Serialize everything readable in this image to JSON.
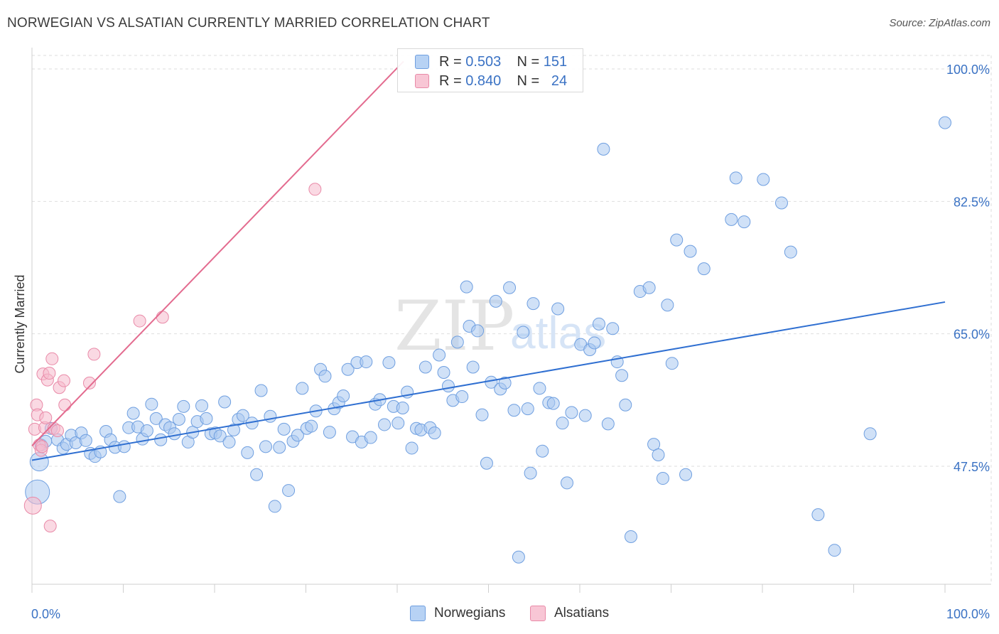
{
  "title": "NORWEGIAN VS ALSATIAN CURRENTLY MARRIED CORRELATION CHART",
  "source": "Source: ZipAtlas.com",
  "colors": {
    "blue_fill": "#a9c8f0",
    "blue_stroke": "#6f9fe0",
    "blue_line": "#2f6fd1",
    "pink_fill": "#f6b9cc",
    "pink_stroke": "#e98aa8",
    "pink_line": "#e36b8f",
    "axis_text": "#3a72c4",
    "grid": "#dedede"
  },
  "legend": {
    "rows": [
      {
        "r_label": "R =",
        "r_value": "0.503",
        "n_label": "N =",
        "n_value": "151"
      },
      {
        "r_label": "R =",
        "r_value": "0.840",
        "n_label": "N =",
        "n_value": "24"
      }
    ]
  },
  "bottom_legend": {
    "norwegians": "Norwegians",
    "alsatians": "Alsatians"
  },
  "watermark": {
    "zip": "ZIP",
    "atlas": "atlas"
  },
  "chart_data": {
    "type": "scatter",
    "title": "NORWEGIAN VS ALSATIAN CURRENTLY MARRIED CORRELATION CHART",
    "xlabel": "",
    "ylabel": "Currently Married",
    "xlim": [
      0,
      100
    ],
    "ylim": [
      34,
      102
    ],
    "x_tick_labels": [
      "0.0%",
      "100.0%"
    ],
    "y_ticks": [
      47.5,
      65.0,
      82.5,
      100.0
    ],
    "y_tick_labels": [
      "47.5%",
      "65.0%",
      "82.5%",
      "100.0%"
    ],
    "series": [
      {
        "name": "Norwegians",
        "r": 0.503,
        "n": 151,
        "trend": {
          "x": [
            0,
            100
          ],
          "y": [
            48.3,
            69.2
          ]
        },
        "points": [
          {
            "x": 0.8,
            "y": 48.1,
            "big": true
          },
          {
            "x": 0.6,
            "y": 44.1,
            "big": true
          },
          {
            "x": 1.0,
            "y": 50.3
          },
          {
            "x": 1.5,
            "y": 50.8
          },
          {
            "x": 2.1,
            "y": 52.5
          },
          {
            "x": 2.8,
            "y": 51.0
          },
          {
            "x": 3.4,
            "y": 49.9
          },
          {
            "x": 3.8,
            "y": 50.4
          },
          {
            "x": 4.3,
            "y": 51.6
          },
          {
            "x": 4.8,
            "y": 50.6
          },
          {
            "x": 5.4,
            "y": 51.9
          },
          {
            "x": 5.9,
            "y": 50.9
          },
          {
            "x": 6.4,
            "y": 49.2
          },
          {
            "x": 6.9,
            "y": 48.8
          },
          {
            "x": 7.5,
            "y": 49.4
          },
          {
            "x": 8.1,
            "y": 52.1
          },
          {
            "x": 8.6,
            "y": 51.0
          },
          {
            "x": 9.1,
            "y": 50.0
          },
          {
            "x": 9.6,
            "y": 43.5
          },
          {
            "x": 10.1,
            "y": 50.1
          },
          {
            "x": 10.6,
            "y": 52.6
          },
          {
            "x": 11.1,
            "y": 54.5
          },
          {
            "x": 11.6,
            "y": 52.7
          },
          {
            "x": 12.1,
            "y": 51.1
          },
          {
            "x": 12.6,
            "y": 52.2
          },
          {
            "x": 13.1,
            "y": 55.7
          },
          {
            "x": 13.6,
            "y": 53.8
          },
          {
            "x": 14.1,
            "y": 51.0
          },
          {
            "x": 14.6,
            "y": 53.0
          },
          {
            "x": 15.1,
            "y": 52.6
          },
          {
            "x": 15.6,
            "y": 51.8
          },
          {
            "x": 16.1,
            "y": 53.7
          },
          {
            "x": 16.6,
            "y": 55.4
          },
          {
            "x": 17.1,
            "y": 50.7
          },
          {
            "x": 17.6,
            "y": 52.0
          },
          {
            "x": 18.1,
            "y": 53.4
          },
          {
            "x": 18.6,
            "y": 55.5
          },
          {
            "x": 19.1,
            "y": 53.8
          },
          {
            "x": 19.6,
            "y": 51.8
          },
          {
            "x": 20.1,
            "y": 51.9
          },
          {
            "x": 20.6,
            "y": 51.5
          },
          {
            "x": 21.1,
            "y": 56.0
          },
          {
            "x": 21.6,
            "y": 50.7
          },
          {
            "x": 22.1,
            "y": 52.3
          },
          {
            "x": 22.6,
            "y": 53.7
          },
          {
            "x": 23.1,
            "y": 54.2
          },
          {
            "x": 23.6,
            "y": 49.3
          },
          {
            "x": 24.1,
            "y": 53.2
          },
          {
            "x": 24.6,
            "y": 46.4
          },
          {
            "x": 25.1,
            "y": 57.5
          },
          {
            "x": 25.6,
            "y": 50.1
          },
          {
            "x": 26.1,
            "y": 54.1
          },
          {
            "x": 26.6,
            "y": 42.2
          },
          {
            "x": 27.1,
            "y": 50.0
          },
          {
            "x": 27.6,
            "y": 52.4
          },
          {
            "x": 28.1,
            "y": 44.3
          },
          {
            "x": 28.6,
            "y": 50.8
          },
          {
            "x": 29.1,
            "y": 51.6
          },
          {
            "x": 29.6,
            "y": 57.8
          },
          {
            "x": 30.1,
            "y": 52.5
          },
          {
            "x": 30.6,
            "y": 52.8
          },
          {
            "x": 31.1,
            "y": 54.8
          },
          {
            "x": 31.6,
            "y": 60.3
          },
          {
            "x": 32.1,
            "y": 59.4
          },
          {
            "x": 32.6,
            "y": 52.0
          },
          {
            "x": 33.1,
            "y": 55.1
          },
          {
            "x": 33.6,
            "y": 55.9
          },
          {
            "x": 34.1,
            "y": 56.8
          },
          {
            "x": 34.6,
            "y": 60.3
          },
          {
            "x": 35.1,
            "y": 51.4
          },
          {
            "x": 35.6,
            "y": 61.2
          },
          {
            "x": 36.1,
            "y": 50.7
          },
          {
            "x": 36.6,
            "y": 61.3
          },
          {
            "x": 37.1,
            "y": 51.3
          },
          {
            "x": 37.6,
            "y": 55.7
          },
          {
            "x": 38.1,
            "y": 56.3
          },
          {
            "x": 38.6,
            "y": 53.0
          },
          {
            "x": 39.1,
            "y": 61.2
          },
          {
            "x": 39.6,
            "y": 55.4
          },
          {
            "x": 40.1,
            "y": 53.2
          },
          {
            "x": 40.6,
            "y": 55.2
          },
          {
            "x": 41.1,
            "y": 57.3
          },
          {
            "x": 41.6,
            "y": 49.9
          },
          {
            "x": 42.1,
            "y": 52.5
          },
          {
            "x": 42.6,
            "y": 52.3
          },
          {
            "x": 43.1,
            "y": 60.6
          },
          {
            "x": 43.6,
            "y": 52.6
          },
          {
            "x": 44.1,
            "y": 51.9
          },
          {
            "x": 44.6,
            "y": 62.2
          },
          {
            "x": 45.1,
            "y": 59.9
          },
          {
            "x": 45.6,
            "y": 58.1
          },
          {
            "x": 46.1,
            "y": 56.2
          },
          {
            "x": 46.6,
            "y": 63.9
          },
          {
            "x": 47.1,
            "y": 56.7
          },
          {
            "x": 47.6,
            "y": 71.2
          },
          {
            "x": 47.9,
            "y": 66.0
          },
          {
            "x": 48.3,
            "y": 60.6
          },
          {
            "x": 48.8,
            "y": 65.4
          },
          {
            "x": 49.3,
            "y": 54.3
          },
          {
            "x": 49.8,
            "y": 47.9
          },
          {
            "x": 50.3,
            "y": 58.6
          },
          {
            "x": 50.8,
            "y": 69.3
          },
          {
            "x": 51.3,
            "y": 57.7
          },
          {
            "x": 51.8,
            "y": 58.5
          },
          {
            "x": 52.3,
            "y": 71.1
          },
          {
            "x": 52.8,
            "y": 54.9
          },
          {
            "x": 53.3,
            "y": 35.5
          },
          {
            "x": 53.8,
            "y": 65.2
          },
          {
            "x": 54.3,
            "y": 55.1
          },
          {
            "x": 54.6,
            "y": 46.6
          },
          {
            "x": 54.9,
            "y": 69.0
          },
          {
            "x": 55.6,
            "y": 57.8
          },
          {
            "x": 55.9,
            "y": 49.5
          },
          {
            "x": 56.6,
            "y": 55.9
          },
          {
            "x": 57.1,
            "y": 55.8
          },
          {
            "x": 57.6,
            "y": 68.3
          },
          {
            "x": 58.1,
            "y": 53.2
          },
          {
            "x": 58.6,
            "y": 45.3
          },
          {
            "x": 59.1,
            "y": 54.6
          },
          {
            "x": 60.1,
            "y": 63.6
          },
          {
            "x": 60.6,
            "y": 54.2
          },
          {
            "x": 61.1,
            "y": 62.9
          },
          {
            "x": 61.6,
            "y": 63.8
          },
          {
            "x": 62.1,
            "y": 66.3
          },
          {
            "x": 62.6,
            "y": 89.4
          },
          {
            "x": 63.1,
            "y": 53.1
          },
          {
            "x": 63.6,
            "y": 65.7
          },
          {
            "x": 64.1,
            "y": 61.3
          },
          {
            "x": 64.6,
            "y": 59.5
          },
          {
            "x": 65.0,
            "y": 55.6
          },
          {
            "x": 65.6,
            "y": 38.2
          },
          {
            "x": 66.6,
            "y": 70.6
          },
          {
            "x": 67.6,
            "y": 71.1
          },
          {
            "x": 68.1,
            "y": 50.4
          },
          {
            "x": 68.6,
            "y": 49.0
          },
          {
            "x": 69.1,
            "y": 45.9
          },
          {
            "x": 69.6,
            "y": 68.8
          },
          {
            "x": 70.1,
            "y": 61.1
          },
          {
            "x": 70.6,
            "y": 77.4
          },
          {
            "x": 71.6,
            "y": 46.4
          },
          {
            "x": 72.1,
            "y": 75.9
          },
          {
            "x": 73.6,
            "y": 73.6
          },
          {
            "x": 76.6,
            "y": 80.1
          },
          {
            "x": 77.1,
            "y": 85.6
          },
          {
            "x": 78.0,
            "y": 79.8
          },
          {
            "x": 80.1,
            "y": 85.4
          },
          {
            "x": 82.1,
            "y": 82.3
          },
          {
            "x": 83.1,
            "y": 75.8
          },
          {
            "x": 86.1,
            "y": 41.1
          },
          {
            "x": 87.9,
            "y": 36.4
          },
          {
            "x": 91.8,
            "y": 51.8
          },
          {
            "x": 100.0,
            "y": 92.9
          }
        ]
      },
      {
        "name": "Alsatians",
        "r": 0.84,
        "n": 24,
        "trend": {
          "x": [
            0,
            40.7
          ],
          "y": [
            50.2,
            101.0
          ]
        },
        "points": [
          {
            "x": 0.1,
            "y": 42.3,
            "big": true
          },
          {
            "x": 0.3,
            "y": 52.4
          },
          {
            "x": 0.5,
            "y": 55.6
          },
          {
            "x": 0.6,
            "y": 54.3
          },
          {
            "x": 0.8,
            "y": 50.3
          },
          {
            "x": 1.0,
            "y": 49.6
          },
          {
            "x": 1.2,
            "y": 59.7
          },
          {
            "x": 1.4,
            "y": 52.6
          },
          {
            "x": 1.5,
            "y": 53.9
          },
          {
            "x": 1.7,
            "y": 58.9
          },
          {
            "x": 1.9,
            "y": 59.8
          },
          {
            "x": 2.0,
            "y": 39.6
          },
          {
            "x": 2.2,
            "y": 61.7
          },
          {
            "x": 2.4,
            "y": 52.5
          },
          {
            "x": 2.8,
            "y": 52.2
          },
          {
            "x": 3.0,
            "y": 57.9
          },
          {
            "x": 3.5,
            "y": 58.8
          },
          {
            "x": 3.6,
            "y": 55.6
          },
          {
            "x": 6.3,
            "y": 58.5
          },
          {
            "x": 6.8,
            "y": 62.3
          },
          {
            "x": 11.8,
            "y": 66.7
          },
          {
            "x": 14.3,
            "y": 67.2
          },
          {
            "x": 31.0,
            "y": 84.1
          },
          {
            "x": 1.1,
            "y": 50.1
          }
        ]
      }
    ]
  }
}
